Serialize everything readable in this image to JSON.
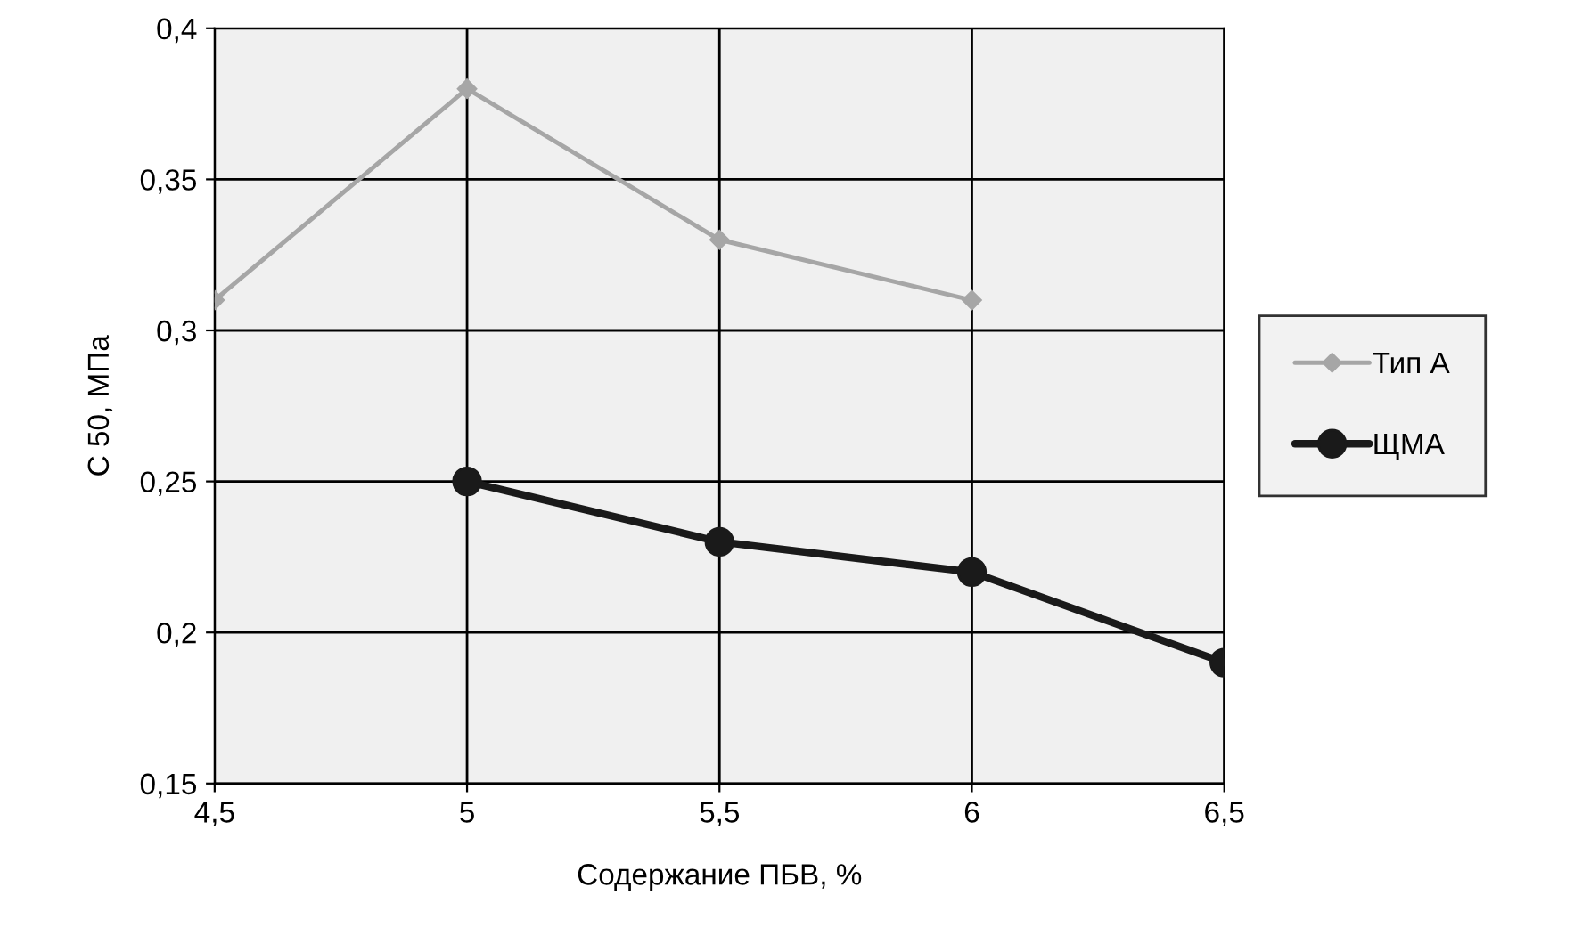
{
  "chart_data": {
    "type": "line",
    "xlabel": "Содержание ПБВ, %",
    "ylabel": "С 50, МПа",
    "series": [
      {
        "name": "Тип А",
        "color": "#a6a6a6",
        "marker": "diamond",
        "x": [
          4.5,
          5,
          5.5,
          6
        ],
        "values": [
          0.31,
          0.38,
          0.33,
          0.31
        ]
      },
      {
        "name": "ЩМА",
        "color": "#1a1a1a",
        "marker": "circle",
        "x": [
          5,
          5.5,
          6,
          6.5
        ],
        "values": [
          0.25,
          0.23,
          0.22,
          0.19
        ]
      }
    ],
    "xlim": [
      4.5,
      6.5
    ],
    "xticks": [
      {
        "value": 4.5,
        "label": "4,5"
      },
      5,
      {
        "value": 5.5,
        "label": "5,5"
      },
      6,
      {
        "value": 6.5,
        "label": "6,5"
      }
    ],
    "ylim": [
      0.15,
      0.4
    ],
    "yticks": [
      {
        "value": 0.15,
        "label": "0,15"
      },
      {
        "value": 0.2,
        "label": "0,2"
      },
      {
        "value": 0.25,
        "label": "0,25"
      },
      {
        "value": 0.3,
        "label": "0,3"
      },
      {
        "value": 0.35,
        "label": "0,35"
      },
      {
        "value": 0.4,
        "label": "0,4"
      }
    ],
    "grid": true,
    "legend": "right",
    "line_style": "solid"
  }
}
